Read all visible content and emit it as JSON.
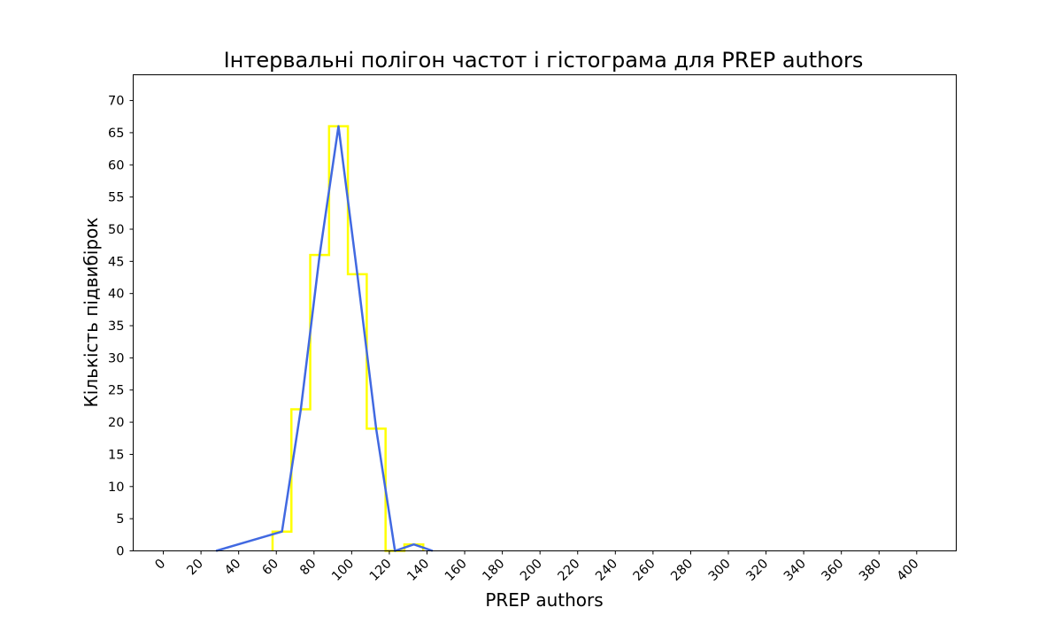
{
  "chart_data": {
    "type": "line",
    "title": "Інтервальні полігон частот і гістограма для PREP authors",
    "xlabel": "PREP authors",
    "ylabel": "Кількість підвибірок",
    "xlim": [
      -16,
      421
    ],
    "ylim": [
      0,
      74
    ],
    "x_ticks": [
      0,
      20,
      40,
      60,
      80,
      100,
      120,
      140,
      160,
      180,
      200,
      220,
      240,
      260,
      280,
      300,
      320,
      340,
      360,
      380,
      400
    ],
    "x_tick_labels": [
      "0",
      "20",
      "40",
      "60",
      "80",
      "100",
      "120",
      "140",
      "160",
      "180",
      "200",
      "220",
      "240",
      "260",
      "280",
      "300",
      "320",
      "340",
      "360",
      "380",
      "400"
    ],
    "y_ticks": [
      0,
      5,
      10,
      15,
      20,
      25,
      30,
      35,
      40,
      45,
      50,
      55,
      60,
      65,
      70
    ],
    "y_tick_labels": [
      "0",
      "5",
      "10",
      "15",
      "20",
      "25",
      "30",
      "35",
      "40",
      "45",
      "50",
      "55",
      "60",
      "65",
      "70"
    ],
    "x_tick_rotation_deg": 45,
    "grid": false,
    "legend": false,
    "histogram": {
      "color": "#ffff00",
      "style": "step",
      "bin_edges": [
        58,
        68,
        78,
        88,
        98,
        108,
        118,
        128,
        138
      ],
      "counts": [
        3,
        22,
        46,
        66,
        43,
        19,
        0,
        1
      ]
    },
    "polygon": {
      "color": "#4169e1",
      "x": [
        28,
        63,
        73,
        83,
        93,
        103,
        113,
        123,
        133,
        143
      ],
      "y": [
        0,
        3,
        22,
        46,
        66,
        43,
        19,
        0,
        1,
        0
      ]
    }
  }
}
